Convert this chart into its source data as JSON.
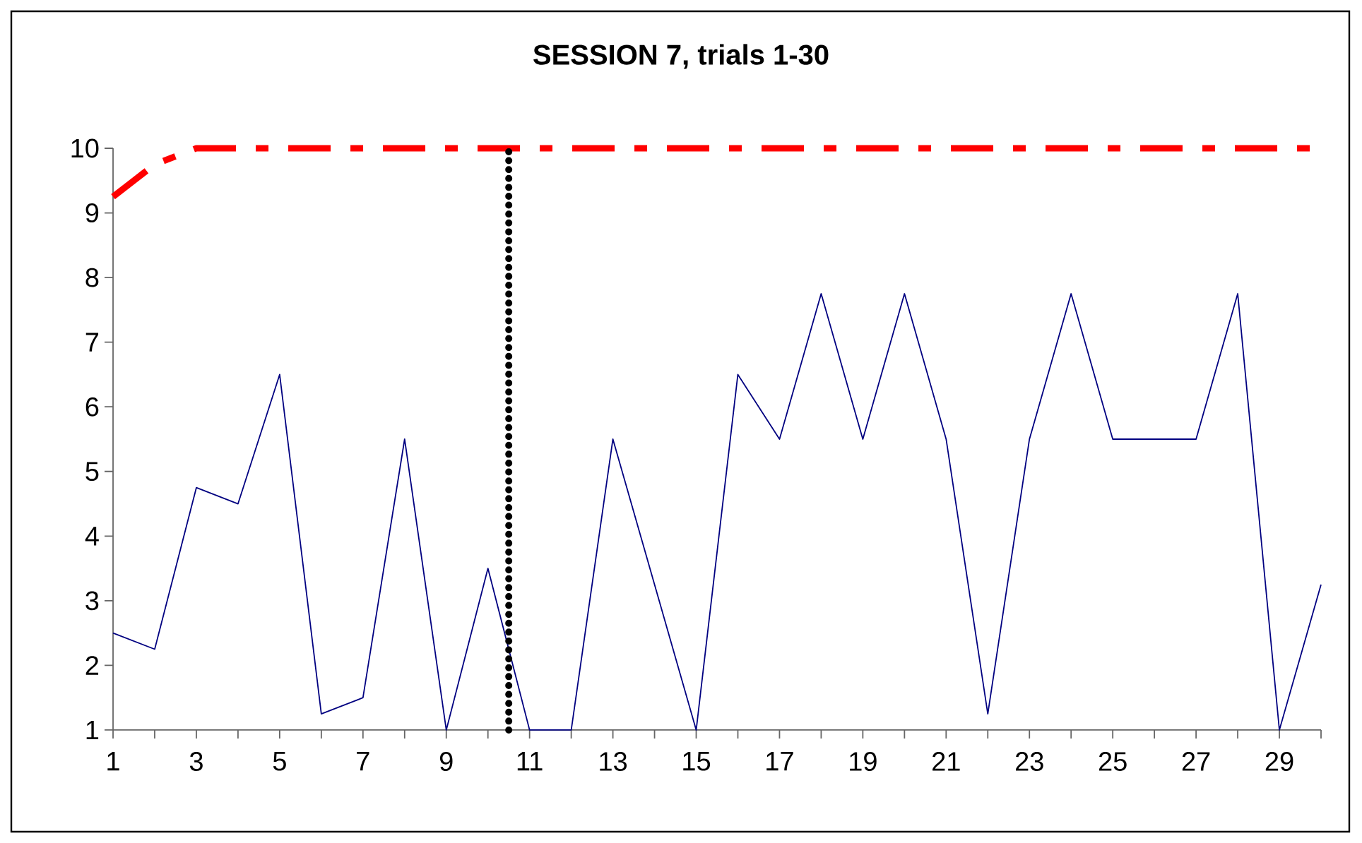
{
  "chart_data": {
    "type": "line",
    "title": "SESSION 7, trials 1-30",
    "x": [
      1,
      2,
      3,
      4,
      5,
      6,
      7,
      8,
      9,
      10,
      11,
      12,
      13,
      14,
      15,
      16,
      17,
      18,
      19,
      20,
      21,
      22,
      23,
      24,
      25,
      26,
      27,
      28,
      29,
      30
    ],
    "series": [
      {
        "color": "#000080",
        "line_style": "solid",
        "values": [
          2.5,
          2.25,
          4.75,
          4.5,
          6.5,
          1.25,
          1.5,
          5.5,
          1,
          3.5,
          1,
          1,
          5.5,
          3.25,
          1,
          6.5,
          5.5,
          7.75,
          5.5,
          7.75,
          5.5,
          1.25,
          5.5,
          7.75,
          5.5,
          5.5,
          5.5,
          7.75,
          1,
          3.25
        ]
      },
      {
        "color": "#ff0000",
        "line_style": "dashed",
        "values": [
          9.25,
          9.75,
          10,
          10,
          10,
          10,
          10,
          10,
          10,
          10,
          10,
          10,
          10,
          10,
          10,
          10,
          10,
          10,
          10,
          10,
          10,
          10,
          10,
          10,
          10,
          10,
          10,
          10,
          10,
          10
        ]
      }
    ],
    "ref_lines": [
      {
        "axis": "x",
        "value": 10.5,
        "color": "#000000",
        "line_style": "dotted"
      }
    ],
    "xlim": [
      1,
      30
    ],
    "xticks": [
      1,
      {
        "value": 2,
        "label": null
      },
      3,
      {
        "value": 4,
        "label": null
      },
      5,
      {
        "value": 6,
        "label": null
      },
      7,
      {
        "value": 8,
        "label": null
      },
      9,
      {
        "value": 10,
        "label": null
      },
      11,
      {
        "value": 12,
        "label": null
      },
      13,
      {
        "value": 14,
        "label": null
      },
      15,
      {
        "value": 16,
        "label": null
      },
      17,
      {
        "value": 18,
        "label": null
      },
      19,
      {
        "value": 20,
        "label": null
      },
      21,
      {
        "value": 22,
        "label": null
      },
      23,
      {
        "value": 24,
        "label": null
      },
      25,
      {
        "value": 26,
        "label": null
      },
      27,
      {
        "value": 28,
        "label": null
      },
      29,
      {
        "value": 30,
        "label": null
      }
    ],
    "ylim": [
      1,
      10
    ],
    "yticks": [
      1,
      2,
      3,
      4,
      5,
      6,
      7,
      8,
      9,
      10
    ],
    "grid": false,
    "legend": false,
    "marker": "none"
  }
}
